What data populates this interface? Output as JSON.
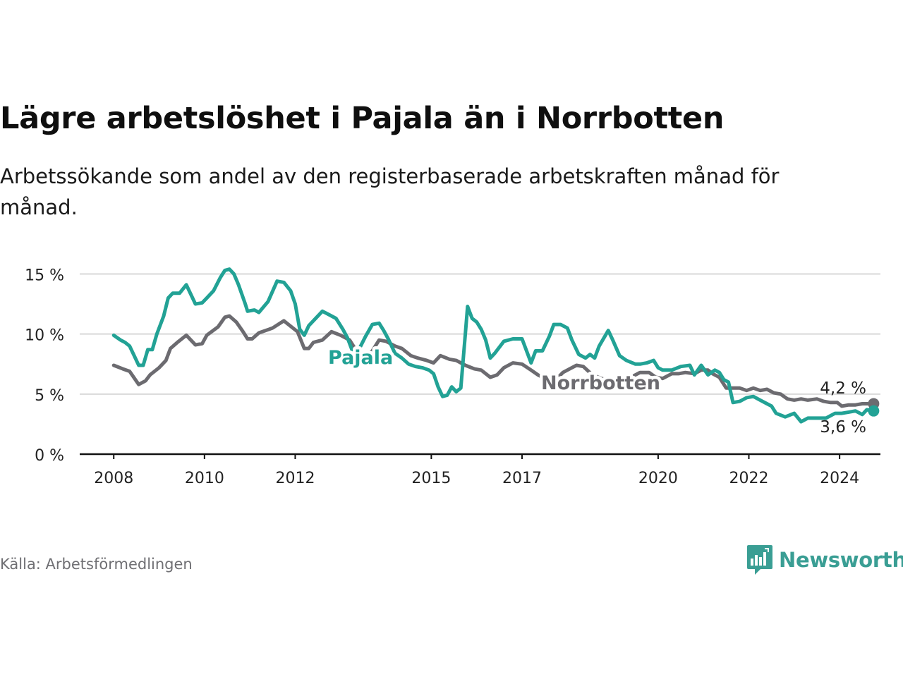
{
  "title": "Lägre arbetslöshet i Pajala än i Norrbotten",
  "subtitle": "Arbetssökande som andel av den registerbaserade arbetskraften månad för månad.",
  "source": "Källa: Arbetsförmedlingen",
  "brand": {
    "name": "Newsworthy",
    "color": "#3a9e94"
  },
  "chart_data": {
    "type": "line",
    "title": "Lägre arbetslöshet i Pajala än i Norrbotten",
    "xlabel": "",
    "ylabel": "",
    "x_ticks": [
      "2008",
      "2010",
      "2012",
      "2015",
      "2017",
      "2020",
      "2022",
      "2024"
    ],
    "x_tick_values": [
      2008,
      2010,
      2012,
      2015,
      2017,
      2020,
      2022,
      2024
    ],
    "xlim": [
      2007.25,
      2024.9
    ],
    "y_ticks": [
      "0 %",
      "5 %",
      "10 %",
      "15 %"
    ],
    "y_tick_values": [
      0,
      5,
      10,
      15
    ],
    "ylim": [
      0,
      15.5
    ],
    "grid": true,
    "series": [
      {
        "name": "Norrbotten",
        "color": "#6c6b70",
        "end_label": "4,2 %",
        "points": [
          [
            2008.0,
            7.4
          ],
          [
            2008.2,
            7.1
          ],
          [
            2008.35,
            6.9
          ],
          [
            2008.55,
            5.8
          ],
          [
            2008.7,
            6.1
          ],
          [
            2008.8,
            6.6
          ],
          [
            2009.0,
            7.2
          ],
          [
            2009.15,
            7.8
          ],
          [
            2009.25,
            8.8
          ],
          [
            2009.4,
            9.3
          ],
          [
            2009.6,
            9.9
          ],
          [
            2009.8,
            9.1
          ],
          [
            2009.95,
            9.2
          ],
          [
            2010.05,
            9.9
          ],
          [
            2010.3,
            10.6
          ],
          [
            2010.45,
            11.4
          ],
          [
            2010.55,
            11.5
          ],
          [
            2010.7,
            11.0
          ],
          [
            2010.85,
            10.2
          ],
          [
            2010.95,
            9.6
          ],
          [
            2011.05,
            9.6
          ],
          [
            2011.2,
            10.1
          ],
          [
            2011.5,
            10.5
          ],
          [
            2011.75,
            11.1
          ],
          [
            2011.85,
            10.8
          ],
          [
            2012.05,
            10.2
          ],
          [
            2012.2,
            8.8
          ],
          [
            2012.3,
            8.8
          ],
          [
            2012.4,
            9.3
          ],
          [
            2012.6,
            9.5
          ],
          [
            2012.8,
            10.2
          ],
          [
            2013.0,
            9.9
          ],
          [
            2013.2,
            9.5
          ],
          [
            2013.4,
            8.3
          ],
          [
            2013.5,
            8.0
          ],
          [
            2013.7,
            8.6
          ],
          [
            2013.85,
            9.5
          ],
          [
            2014.0,
            9.4
          ],
          [
            2014.2,
            9.0
          ],
          [
            2014.35,
            8.8
          ],
          [
            2014.55,
            8.2
          ],
          [
            2014.7,
            8.0
          ],
          [
            2014.9,
            7.8
          ],
          [
            2015.05,
            7.6
          ],
          [
            2015.2,
            8.2
          ],
          [
            2015.4,
            7.9
          ],
          [
            2015.55,
            7.8
          ],
          [
            2015.75,
            7.4
          ],
          [
            2015.95,
            7.1
          ],
          [
            2016.1,
            7.0
          ],
          [
            2016.3,
            6.4
          ],
          [
            2016.45,
            6.6
          ],
          [
            2016.6,
            7.2
          ],
          [
            2016.8,
            7.6
          ],
          [
            2017.0,
            7.5
          ],
          [
            2017.2,
            7.0
          ],
          [
            2017.35,
            6.6
          ],
          [
            2017.5,
            6.3
          ],
          [
            2017.7,
            6.1
          ],
          [
            2017.8,
            6.4
          ],
          [
            2017.9,
            6.8
          ],
          [
            2018.05,
            7.1
          ],
          [
            2018.2,
            7.4
          ],
          [
            2018.35,
            7.3
          ],
          [
            2018.55,
            6.6
          ],
          [
            2018.75,
            6.3
          ],
          [
            2018.85,
            6.2
          ],
          [
            2019.05,
            6.2
          ],
          [
            2019.3,
            6.3
          ],
          [
            2019.45,
            6.5
          ],
          [
            2019.6,
            6.8
          ],
          [
            2019.8,
            6.8
          ],
          [
            2019.95,
            6.4
          ],
          [
            2020.1,
            6.3
          ],
          [
            2020.2,
            6.5
          ],
          [
            2020.3,
            6.7
          ],
          [
            2020.45,
            6.7
          ],
          [
            2020.6,
            6.8
          ],
          [
            2020.8,
            6.7
          ],
          [
            2020.95,
            7.0
          ],
          [
            2021.1,
            7.0
          ],
          [
            2021.2,
            6.7
          ],
          [
            2021.35,
            6.4
          ],
          [
            2021.5,
            5.5
          ],
          [
            2021.8,
            5.5
          ],
          [
            2021.95,
            5.3
          ],
          [
            2022.1,
            5.5
          ],
          [
            2022.25,
            5.3
          ],
          [
            2022.4,
            5.4
          ],
          [
            2022.55,
            5.1
          ],
          [
            2022.7,
            5.0
          ],
          [
            2022.85,
            4.6
          ],
          [
            2023.0,
            4.5
          ],
          [
            2023.15,
            4.6
          ],
          [
            2023.3,
            4.5
          ],
          [
            2023.5,
            4.6
          ],
          [
            2023.65,
            4.4
          ],
          [
            2023.8,
            4.3
          ],
          [
            2023.95,
            4.3
          ],
          [
            2024.05,
            4.0
          ],
          [
            2024.2,
            4.1
          ],
          [
            2024.35,
            4.1
          ],
          [
            2024.5,
            4.2
          ],
          [
            2024.65,
            4.2
          ],
          [
            2024.75,
            4.2
          ]
        ]
      },
      {
        "name": "Pajala",
        "color": "#22a295",
        "end_label": "3,6 %",
        "points": [
          [
            2008.0,
            9.9
          ],
          [
            2008.15,
            9.5
          ],
          [
            2008.25,
            9.3
          ],
          [
            2008.35,
            9.0
          ],
          [
            2008.45,
            8.2
          ],
          [
            2008.55,
            7.4
          ],
          [
            2008.65,
            7.4
          ],
          [
            2008.75,
            8.7
          ],
          [
            2008.85,
            8.7
          ],
          [
            2008.95,
            10.0
          ],
          [
            2009.1,
            11.5
          ],
          [
            2009.2,
            13.0
          ],
          [
            2009.3,
            13.4
          ],
          [
            2009.45,
            13.4
          ],
          [
            2009.6,
            14.1
          ],
          [
            2009.8,
            12.5
          ],
          [
            2009.95,
            12.6
          ],
          [
            2010.05,
            13.0
          ],
          [
            2010.2,
            13.6
          ],
          [
            2010.35,
            14.7
          ],
          [
            2010.45,
            15.3
          ],
          [
            2010.55,
            15.4
          ],
          [
            2010.65,
            15.0
          ],
          [
            2010.75,
            14.1
          ],
          [
            2010.9,
            12.5
          ],
          [
            2010.95,
            11.9
          ],
          [
            2011.1,
            12.0
          ],
          [
            2011.2,
            11.8
          ],
          [
            2011.4,
            12.7
          ],
          [
            2011.6,
            14.4
          ],
          [
            2011.75,
            14.3
          ],
          [
            2011.9,
            13.6
          ],
          [
            2012.0,
            12.5
          ],
          [
            2012.1,
            10.4
          ],
          [
            2012.2,
            9.9
          ],
          [
            2012.3,
            10.7
          ],
          [
            2012.45,
            11.3
          ],
          [
            2012.6,
            11.9
          ],
          [
            2012.75,
            11.6
          ],
          [
            2012.9,
            11.3
          ],
          [
            2013.05,
            10.4
          ],
          [
            2013.15,
            9.7
          ],
          [
            2013.25,
            8.7
          ],
          [
            2013.35,
            8.3
          ],
          [
            2013.55,
            9.8
          ],
          [
            2013.7,
            10.8
          ],
          [
            2013.85,
            10.9
          ],
          [
            2013.95,
            10.3
          ],
          [
            2014.05,
            9.6
          ],
          [
            2014.2,
            8.4
          ],
          [
            2014.35,
            8.0
          ],
          [
            2014.5,
            7.5
          ],
          [
            2014.65,
            7.3
          ],
          [
            2014.8,
            7.2
          ],
          [
            2014.95,
            7.0
          ],
          [
            2015.05,
            6.7
          ],
          [
            2015.15,
            5.6
          ],
          [
            2015.25,
            4.8
          ],
          [
            2015.35,
            4.9
          ],
          [
            2015.45,
            5.6
          ],
          [
            2015.55,
            5.2
          ],
          [
            2015.65,
            5.5
          ],
          [
            2015.75,
            10.0
          ],
          [
            2015.8,
            12.3
          ],
          [
            2015.9,
            11.3
          ],
          [
            2016.0,
            11.0
          ],
          [
            2016.1,
            10.4
          ],
          [
            2016.2,
            9.5
          ],
          [
            2016.3,
            8.0
          ],
          [
            2016.4,
            8.4
          ],
          [
            2016.6,
            9.4
          ],
          [
            2016.8,
            9.6
          ],
          [
            2017.0,
            9.6
          ],
          [
            2017.2,
            7.6
          ],
          [
            2017.3,
            8.6
          ],
          [
            2017.45,
            8.6
          ],
          [
            2017.6,
            9.8
          ],
          [
            2017.7,
            10.8
          ],
          [
            2017.85,
            10.8
          ],
          [
            2018.0,
            10.5
          ],
          [
            2018.1,
            9.5
          ],
          [
            2018.25,
            8.3
          ],
          [
            2018.4,
            8.0
          ],
          [
            2018.5,
            8.3
          ],
          [
            2018.6,
            8.0
          ],
          [
            2018.7,
            9.0
          ],
          [
            2018.9,
            10.3
          ],
          [
            2019.0,
            9.5
          ],
          [
            2019.15,
            8.2
          ],
          [
            2019.3,
            7.8
          ],
          [
            2019.5,
            7.5
          ],
          [
            2019.6,
            7.5
          ],
          [
            2019.75,
            7.6
          ],
          [
            2019.9,
            7.8
          ],
          [
            2020.0,
            7.2
          ],
          [
            2020.1,
            7.0
          ],
          [
            2020.3,
            7.0
          ],
          [
            2020.5,
            7.3
          ],
          [
            2020.7,
            7.4
          ],
          [
            2020.8,
            6.6
          ],
          [
            2020.95,
            7.4
          ],
          [
            2021.1,
            6.6
          ],
          [
            2021.25,
            7.0
          ],
          [
            2021.35,
            6.8
          ],
          [
            2021.45,
            6.2
          ],
          [
            2021.55,
            6.0
          ],
          [
            2021.65,
            4.3
          ],
          [
            2021.8,
            4.4
          ],
          [
            2021.95,
            4.7
          ],
          [
            2022.1,
            4.8
          ],
          [
            2022.25,
            4.5
          ],
          [
            2022.4,
            4.2
          ],
          [
            2022.5,
            4.0
          ],
          [
            2022.6,
            3.4
          ],
          [
            2022.8,
            3.1
          ],
          [
            2023.0,
            3.4
          ],
          [
            2023.15,
            2.7
          ],
          [
            2023.3,
            3.0
          ],
          [
            2023.5,
            3.0
          ],
          [
            2023.7,
            3.0
          ],
          [
            2023.9,
            3.4
          ],
          [
            2024.05,
            3.4
          ],
          [
            2024.2,
            3.5
          ],
          [
            2024.35,
            3.6
          ],
          [
            2024.5,
            3.3
          ],
          [
            2024.6,
            3.7
          ],
          [
            2024.75,
            3.6
          ]
        ]
      }
    ]
  }
}
